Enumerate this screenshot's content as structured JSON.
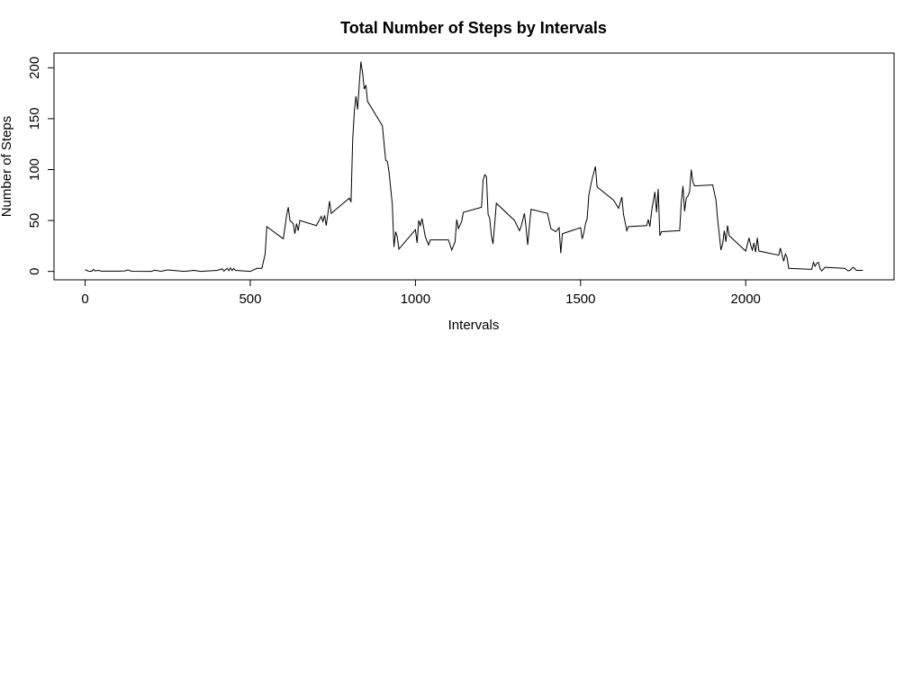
{
  "chart_data": {
    "type": "line",
    "title": "Total Number of Steps by Intervals",
    "x_label": "Intervals",
    "y_label": "Number of Steps",
    "xlim": [
      -94.2,
      2449.2
    ],
    "ylim": [
      -8.25,
      214.42
    ],
    "xticks": [
      0,
      500,
      1000,
      1500,
      2000
    ],
    "yticks": [
      0,
      50,
      100,
      150,
      200
    ],
    "color": "#000000",
    "x": [
      0,
      10,
      20,
      25,
      30,
      40,
      50,
      100,
      120,
      130,
      140,
      200,
      210,
      230,
      250,
      300,
      330,
      350,
      400,
      415,
      420,
      430,
      435,
      440,
      445,
      450,
      455,
      500,
      520,
      535,
      545,
      550,
      600,
      610,
      615,
      620,
      630,
      635,
      640,
      645,
      650,
      700,
      715,
      720,
      725,
      730,
      740,
      745,
      800,
      805,
      810,
      815,
      820,
      825,
      830,
      835,
      840,
      845,
      850,
      855,
      900,
      910,
      915,
      920,
      930,
      935,
      940,
      945,
      950,
      1000,
      1005,
      1010,
      1015,
      1020,
      1030,
      1040,
      1045,
      1100,
      1110,
      1115,
      1120,
      1125,
      1130,
      1140,
      1145,
      1200,
      1205,
      1210,
      1215,
      1220,
      1225,
      1230,
      1235,
      1245,
      1300,
      1315,
      1320,
      1330,
      1335,
      1340,
      1345,
      1350,
      1400,
      1410,
      1425,
      1435,
      1440,
      1445,
      1500,
      1505,
      1510,
      1515,
      1520,
      1525,
      1535,
      1545,
      1550,
      1600,
      1615,
      1625,
      1630,
      1640,
      1645,
      1700,
      1705,
      1710,
      1715,
      1725,
      1730,
      1735,
      1740,
      1745,
      1800,
      1805,
      1810,
      1815,
      1820,
      1825,
      1830,
      1835,
      1840,
      1845,
      1900,
      1910,
      1915,
      1920,
      1925,
      1930,
      1935,
      1940,
      1945,
      1950,
      2000,
      2010,
      2015,
      2020,
      2025,
      2030,
      2035,
      2040,
      2100,
      2105,
      2110,
      2115,
      2120,
      2125,
      2130,
      2200,
      2205,
      2210,
      2215,
      2220,
      2225,
      2230,
      2240,
      2300,
      2310,
      2315,
      2325,
      2330,
      2335,
      2355
    ],
    "values": [
      1.7,
      0.3,
      0.1,
      2,
      0.5,
      1,
      0.3,
      0.3,
      0.5,
      1.5,
      0.2,
      0,
      1.1,
      0.2,
      1.5,
      0,
      1,
      0,
      1,
      2.6,
      0.3,
      3,
      0.7,
      3.5,
      0.8,
      3,
      1,
      0,
      3,
      3,
      17,
      44,
      32,
      55,
      63,
      50,
      47,
      37,
      47,
      40,
      50,
      45,
      54,
      49,
      55,
      45,
      69,
      57,
      72,
      68,
      129,
      157,
      172,
      159,
      184,
      206,
      195,
      179,
      183,
      167,
      143,
      109,
      108,
      98,
      66,
      24,
      39,
      34,
      22,
      41,
      28,
      50,
      45,
      52,
      34,
      26,
      31,
      31,
      21,
      25,
      29,
      51,
      42,
      49,
      58,
      63,
      90,
      95,
      93,
      56,
      52,
      35,
      27,
      67,
      50,
      40,
      44,
      57,
      43,
      26,
      44,
      61,
      57,
      42,
      39,
      43,
      18,
      37,
      43,
      32,
      38,
      47,
      52,
      75,
      91,
      103,
      83,
      70,
      62,
      73,
      56,
      40,
      44,
      45,
      51,
      44,
      59,
      78,
      58,
      81,
      35,
      39,
      40,
      68,
      84,
      59,
      72,
      74,
      78,
      100,
      88,
      84,
      85,
      70,
      51,
      36,
      21,
      27,
      40,
      29,
      45,
      35,
      20,
      33,
      26,
      21,
      28,
      19,
      33,
      20,
      16,
      23,
      16,
      10,
      17,
      14,
      3,
      2,
      9,
      5,
      8,
      9,
      3,
      0.5,
      4,
      3,
      0.5,
      1,
      4,
      3,
      1,
      1
    ]
  }
}
